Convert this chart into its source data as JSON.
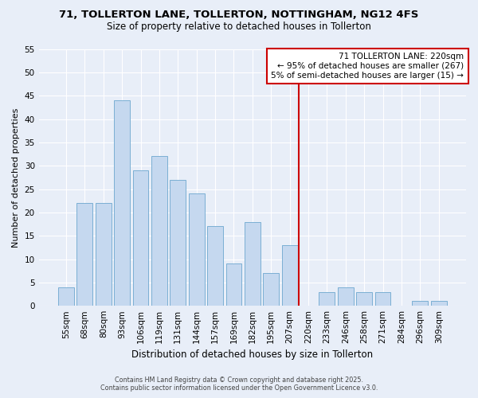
{
  "title": "71, TOLLERTON LANE, TOLLERTON, NOTTINGHAM, NG12 4FS",
  "subtitle": "Size of property relative to detached houses in Tollerton",
  "xlabel": "Distribution of detached houses by size in Tollerton",
  "ylabel": "Number of detached properties",
  "bar_labels": [
    "55sqm",
    "68sqm",
    "80sqm",
    "93sqm",
    "106sqm",
    "119sqm",
    "131sqm",
    "144sqm",
    "157sqm",
    "169sqm",
    "182sqm",
    "195sqm",
    "207sqm",
    "220sqm",
    "233sqm",
    "246sqm",
    "258sqm",
    "271sqm",
    "284sqm",
    "296sqm",
    "309sqm"
  ],
  "bar_values": [
    4,
    22,
    22,
    44,
    29,
    32,
    27,
    24,
    17,
    9,
    18,
    7,
    13,
    0,
    3,
    4,
    3,
    3,
    0,
    1,
    1
  ],
  "bar_color": "#c5d8ef",
  "bar_edge_color": "#7bafd4",
  "vline_x": 12.5,
  "vline_color": "#cc0000",
  "annotation_title": "71 TOLLERTON LANE: 220sqm",
  "annotation_line1": "← 95% of detached houses are smaller (267)",
  "annotation_line2": "5% of semi-detached houses are larger (15) →",
  "annotation_box_facecolor": "#ffffff",
  "annotation_box_edgecolor": "#cc0000",
  "ylim": [
    0,
    55
  ],
  "yticks": [
    0,
    5,
    10,
    15,
    20,
    25,
    30,
    35,
    40,
    45,
    50,
    55
  ],
  "footnote1": "Contains HM Land Registry data © Crown copyright and database right 2025.",
  "footnote2": "Contains public sector information licensed under the Open Government Licence v3.0.",
  "bg_color": "#e8eef8",
  "grid_color": "#ffffff",
  "title_fontsize": 9.5,
  "subtitle_fontsize": 8.5,
  "ylabel_fontsize": 8,
  "xlabel_fontsize": 8.5,
  "tick_fontsize": 7.5,
  "annotation_fontsize": 7.5,
  "footnote_fontsize": 5.8
}
